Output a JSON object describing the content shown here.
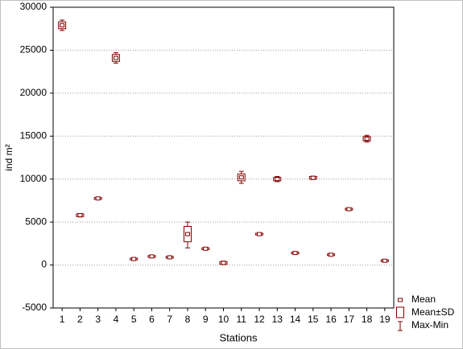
{
  "chart_data": {
    "type": "box",
    "x_label": "Stations",
    "y_label": "ind m²",
    "categories": [
      "1",
      "2",
      "3",
      "4",
      "5",
      "6",
      "7",
      "8",
      "9",
      "10",
      "11",
      "12",
      "13",
      "14",
      "15",
      "16",
      "17",
      "18",
      "19"
    ],
    "series": [
      {
        "name": "Mean",
        "color": "#800000",
        "values": [
          27900,
          5800,
          7750,
          24100,
          700,
          1000,
          900,
          3600,
          1900,
          250,
          10200,
          3600,
          10000,
          1400,
          10150,
          1200,
          6500,
          14700,
          500
        ]
      },
      {
        "name": "Mean±SD",
        "color": "#800000",
        "low": [
          27500,
          5650,
          7650,
          23700,
          600,
          900,
          800,
          2700,
          1800,
          100,
          9800,
          3500,
          9800,
          1300,
          10000,
          1100,
          6400,
          14450,
          400
        ],
        "high": [
          28300,
          5950,
          7850,
          24500,
          800,
          1100,
          1000,
          4500,
          2000,
          400,
          10600,
          3700,
          10200,
          1500,
          10300,
          1300,
          6600,
          14950,
          600
        ]
      },
      {
        "name": "Max-Min",
        "color": "#800000",
        "low": [
          27300,
          5600,
          7600,
          23500,
          550,
          850,
          750,
          2000,
          1750,
          50,
          9500,
          3450,
          9700,
          1250,
          9950,
          1050,
          6350,
          14300,
          350
        ],
        "high": [
          28500,
          6000,
          7900,
          24700,
          850,
          1150,
          1050,
          5000,
          2050,
          450,
          10900,
          3750,
          10300,
          1550,
          10350,
          1350,
          6650,
          15100,
          650
        ]
      }
    ],
    "ylim": [
      -5000,
      30000
    ],
    "yticks": [
      -5000,
      0,
      5000,
      10000,
      15000,
      20000,
      25000,
      30000
    ],
    "grid": true
  }
}
